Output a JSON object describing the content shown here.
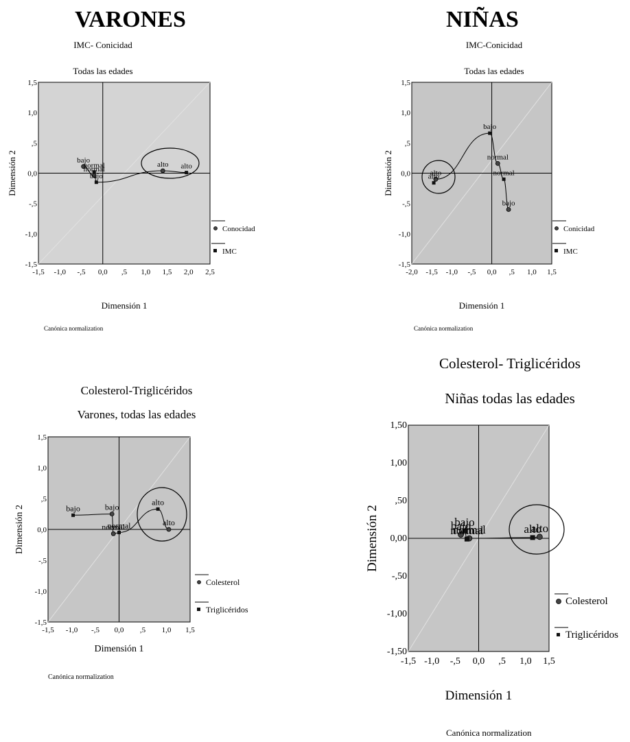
{
  "headers": {
    "left": "VARONES",
    "right": "NIÑAS"
  },
  "chart_data": [
    {
      "type": "scatter",
      "title": "IMC- Conicidad",
      "subtitle": "Todas las edades",
      "xlabel": "Dimensión 1",
      "ylabel": "Dimensión 2",
      "note": "Canónica normalization",
      "xlim": [
        -1.5,
        2.5
      ],
      "ylim": [
        -1.5,
        1.5
      ],
      "xticks": [
        "-1,5",
        "-1,0",
        "-,5",
        "0,0",
        ",5",
        "1,0",
        "1,5",
        "2,0",
        "2,5"
      ],
      "yticks": [
        "1,5",
        "1,0",
        ",5",
        "0,0",
        "-,5",
        "-1,0",
        "-1,5"
      ],
      "grid": false,
      "legend_position": "right",
      "series": [
        {
          "name": "Conocidad",
          "marker": "circle",
          "points": [
            {
              "label": "bajo",
              "x": -0.45,
              "y": 0.11
            },
            {
              "label": "normal",
              "x": -0.2,
              "y": -0.04
            },
            {
              "label": "alto",
              "x": 1.4,
              "y": 0.04
            }
          ]
        },
        {
          "name": "IMC",
          "marker": "square",
          "points": [
            {
              "label": "normal",
              "x": -0.2,
              "y": 0.02
            },
            {
              "label": "bajo",
              "x": -0.15,
              "y": -0.15
            },
            {
              "label": "alto",
              "x": 1.95,
              "y": 0.01
            }
          ]
        }
      ],
      "circle_note": "alto cluster circled"
    },
    {
      "type": "scatter",
      "title": "IMC-Conicidad",
      "subtitle": "Todas las edades",
      "xlabel": "Dimensión 1",
      "ylabel": "Dimensión 2",
      "note": "Canónica normalization",
      "xlim": [
        -2.0,
        1.5
      ],
      "ylim": [
        -1.5,
        1.5
      ],
      "xticks": [
        "-2,0",
        "-1,5",
        "-1,0",
        "-,5",
        "0,0",
        ",5",
        "1,0",
        "1,5"
      ],
      "yticks": [
        "1,5",
        "1,0",
        ",5",
        "0,0",
        "-,5",
        "-1,0",
        "-1,5"
      ],
      "grid": false,
      "legend_position": "right",
      "series": [
        {
          "name": "Conicidad",
          "marker": "circle",
          "points": [
            {
              "label": "normal",
              "x": 0.15,
              "y": 0.16
            },
            {
              "label": "bajo",
              "x": 0.42,
              "y": -0.6
            },
            {
              "label": "alto",
              "x": -1.4,
              "y": -0.1
            }
          ]
        },
        {
          "name": "IMC",
          "marker": "square",
          "points": [
            {
              "label": "bajo",
              "x": -0.05,
              "y": 0.66
            },
            {
              "label": "normal",
              "x": 0.3,
              "y": -0.1
            },
            {
              "label": "alto",
              "x": -1.45,
              "y": -0.16
            }
          ]
        }
      ]
    },
    {
      "type": "scatter",
      "title": "Colesterol-Triglicéridos",
      "subtitle": "Varones, todas las edades",
      "xlabel": "Dimensión 1",
      "ylabel": "Dimensión 2",
      "note": "Canónica normalization",
      "xlim": [
        -1.5,
        1.5
      ],
      "ylim": [
        -1.5,
        1.5
      ],
      "xticks": [
        "-1,5",
        "-1,0",
        "-,5",
        "0,0",
        ",5",
        "1,0",
        "1,5"
      ],
      "yticks": [
        "1,5",
        "1,0",
        ",5",
        "0,0",
        "-,5",
        "-1,0",
        "-1,5"
      ],
      "grid": false,
      "legend_position": "right",
      "series": [
        {
          "name": "Colesterol",
          "marker": "circle",
          "points": [
            {
              "label": "bajo",
              "x": -0.15,
              "y": 0.25
            },
            {
              "label": "normal",
              "x": -0.12,
              "y": -0.07
            },
            {
              "label": "alto",
              "x": 1.05,
              "y": 0.0
            }
          ]
        },
        {
          "name": "Triglicéridos",
          "marker": "square",
          "points": [
            {
              "label": "bajo",
              "x": -0.97,
              "y": 0.23
            },
            {
              "label": "normal",
              "x": 0.0,
              "y": -0.05
            },
            {
              "label": "alto",
              "x": 0.82,
              "y": 0.33
            }
          ]
        }
      ]
    },
    {
      "type": "scatter",
      "title": "Colesterol- Triglicéridos",
      "subtitle": "Niñas todas las edades",
      "xlabel": "Dimensión 1",
      "ylabel": "Dimensión 2",
      "note": "Canónica normalization",
      "xlim": [
        -1.5,
        1.5
      ],
      "ylim": [
        -1.5,
        1.5
      ],
      "xticks": [
        "-1,5",
        "-1,0",
        "-,5",
        "0,0",
        ",5",
        "1,0",
        "1,5"
      ],
      "yticks": [
        "1,50",
        "1,00",
        ",50",
        "0,00",
        "-,50",
        "-1,00",
        "-1,50"
      ],
      "grid": false,
      "legend_position": "right",
      "series": [
        {
          "name": "Colesterol",
          "marker": "circle",
          "points": [
            {
              "label": "bajo",
              "x": -0.38,
              "y": 0.05
            },
            {
              "label": "normal",
              "x": -0.2,
              "y": 0.0
            },
            {
              "label": "alto",
              "x": 1.3,
              "y": 0.02
            }
          ]
        },
        {
          "name": "Triglicéridos",
          "marker": "square",
          "points": [
            {
              "label": "bajo",
              "x": -0.3,
              "y": 0.1
            },
            {
              "label": "normal",
              "x": -0.25,
              "y": -0.01
            },
            {
              "label": "alto",
              "x": 1.15,
              "y": 0.01
            }
          ]
        }
      ]
    }
  ]
}
